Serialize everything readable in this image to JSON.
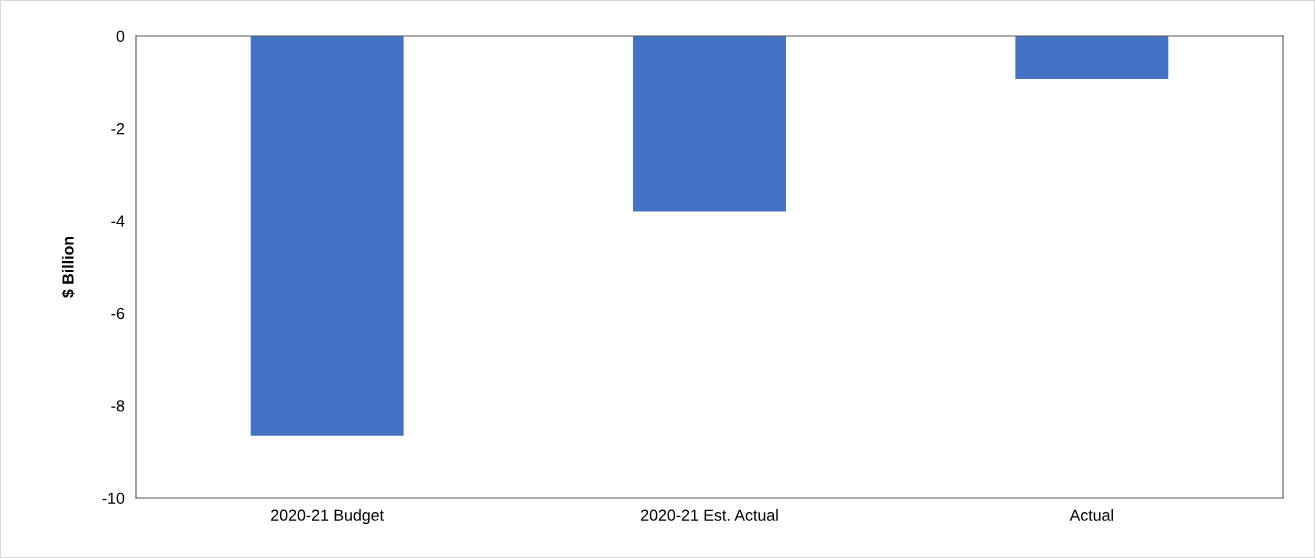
{
  "chart_data": {
    "type": "bar",
    "ylabel": "$ Billion",
    "categories": [
      "2020-21 Budget",
      "2020-21 Est. Actual",
      "Actual"
    ],
    "values": [
      -8.65,
      -3.8,
      -0.93
    ],
    "color": "#4472c4",
    "ylim": [
      -10,
      0
    ],
    "yticks": [
      {
        "value": -10,
        "label": "-10"
      },
      {
        "value": -8,
        "label": "-8"
      },
      {
        "value": -6,
        "label": "-6"
      },
      {
        "value": -4,
        "label": "-4"
      },
      {
        "value": -2,
        "label": "-2"
      },
      0
    ],
    "grid": false,
    "legend": false
  }
}
